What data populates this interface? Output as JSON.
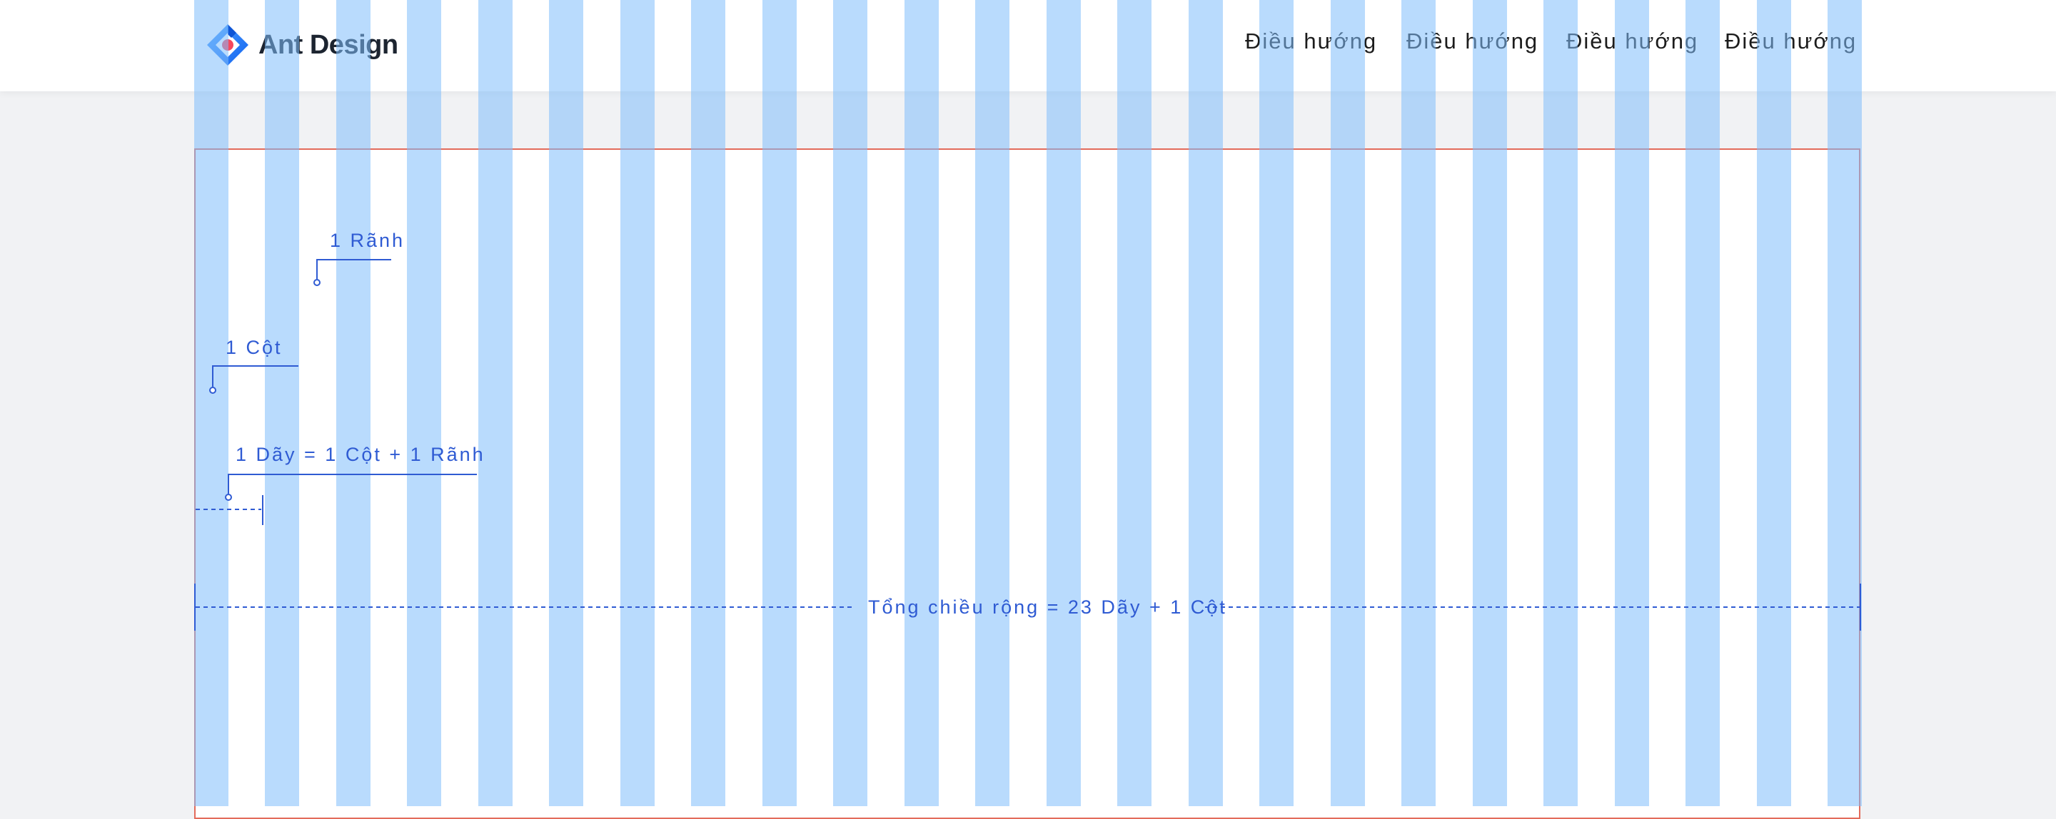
{
  "header": {
    "logo_text": "Ant Design",
    "nav": [
      {
        "label": "Điều hướng"
      },
      {
        "label": "Điều hướng"
      },
      {
        "label": "Điều hướng"
      },
      {
        "label": "Điều hướng"
      }
    ]
  },
  "grid": {
    "columns": 24,
    "gutter_label": "1 Rãnh",
    "column_label": "1 Cột",
    "strip_label": "1 Dãy = 1 Cột  +  1 Rãnh",
    "total_label": "Tổng chiều rộng = 23 Dãy + 1 Cột"
  },
  "colors": {
    "column_fill": "#80bdfc",
    "annotation": "#2f5bd3",
    "panel_border": "#e36b5b",
    "logo_blue": "#1677ff",
    "logo_red": "#f5475e"
  }
}
